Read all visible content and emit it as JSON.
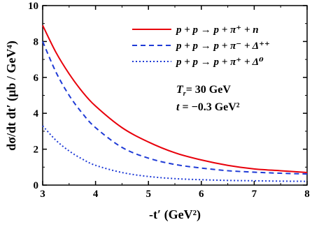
{
  "chart_data": {
    "type": "line",
    "xlabel": "-t′ (GeV²)",
    "ylabel": "dσ/dt dt′ (μb / GeV⁴)",
    "xlim": [
      3,
      8
    ],
    "ylim": [
      0,
      10
    ],
    "x_ticks": [
      "3",
      "4",
      "5",
      "6",
      "7",
      "8"
    ],
    "y_ticks": [
      "0",
      "2",
      "4",
      "6",
      "8",
      "10"
    ],
    "grid": false,
    "legend_position": "top-right",
    "series": [
      {
        "name": "p + p → p + π⁺ + n",
        "color": "#e8000b",
        "dash": "solid",
        "x": [
          3.0,
          3.25,
          3.5,
          3.75,
          4.0,
          4.5,
          5.0,
          5.5,
          6.0,
          6.5,
          7.0,
          7.5,
          8.0
        ],
        "y": [
          8.9,
          7.4,
          6.2,
          5.2,
          4.4,
          3.2,
          2.4,
          1.8,
          1.4,
          1.1,
          0.9,
          0.8,
          0.7
        ]
      },
      {
        "name": "p + p → p + π⁻ + Δ⁺⁺",
        "color": "#1f3bd6",
        "dash": "dashed",
        "x": [
          3.0,
          3.25,
          3.5,
          3.75,
          4.0,
          4.5,
          5.0,
          5.5,
          6.0,
          6.5,
          7.0,
          7.5,
          8.0
        ],
        "y": [
          8.0,
          6.3,
          5.0,
          4.0,
          3.2,
          2.1,
          1.5,
          1.15,
          0.95,
          0.8,
          0.72,
          0.66,
          0.62
        ]
      },
      {
        "name": "p + p → p + π⁺ + Δ⁰",
        "color": "#1f3bd6",
        "dash": "dotted",
        "x": [
          3.0,
          3.25,
          3.5,
          3.75,
          4.0,
          4.5,
          5.0,
          5.5,
          6.0,
          6.5,
          7.0,
          7.5,
          8.0
        ],
        "y": [
          3.3,
          2.5,
          1.9,
          1.45,
          1.1,
          0.7,
          0.48,
          0.36,
          0.3,
          0.26,
          0.24,
          0.22,
          0.21
        ]
      }
    ],
    "annotations": [
      "T_{r}= 30 GeV",
      "t = −0.3 GeV²"
    ]
  },
  "legend": {
    "entries": [
      {
        "label": "p + p → p + π⁺ + n"
      },
      {
        "label": "p + p → p + π⁻ + Δ⁺⁺"
      },
      {
        "label": "p + p → p + π⁺ + Δ⁰"
      }
    ]
  },
  "annotations": {
    "energy": "T",
    "energy_sub": "r",
    "energy_value": "= 30 GeV",
    "t_var": "t",
    "t_value": " = −0.3 GeV²"
  }
}
